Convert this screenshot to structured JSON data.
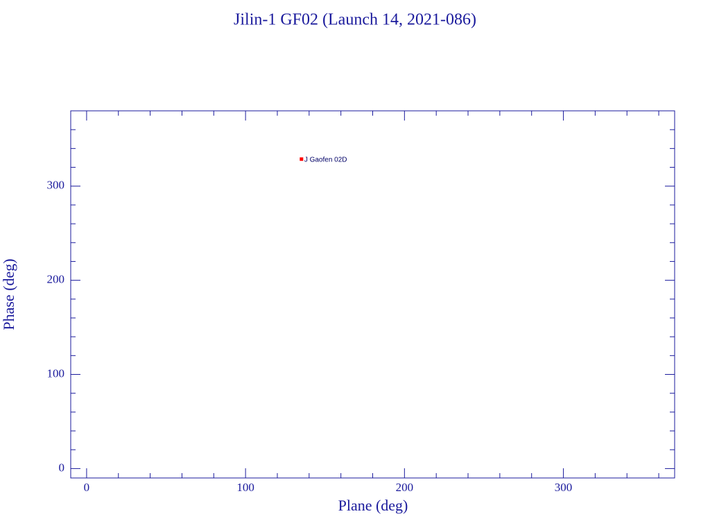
{
  "chart_data": {
    "type": "scatter",
    "title": "Jilin-1 GF02 (Launch 14, 2021-086)",
    "xlabel": "Plane (deg)",
    "ylabel": "Phase (deg)",
    "xlim": [
      -10,
      370
    ],
    "ylim": [
      -10,
      380
    ],
    "xticks": [
      0,
      100,
      200,
      300
    ],
    "yticks": [
      0,
      100,
      200,
      300
    ],
    "x_minor_ticks": [
      20,
      40,
      60,
      80,
      120,
      140,
      160,
      180,
      220,
      240,
      260,
      280,
      320,
      340,
      360
    ],
    "y_minor_ticks": [
      20,
      40,
      60,
      80,
      120,
      140,
      160,
      180,
      220,
      240,
      260,
      280,
      320,
      340,
      360
    ],
    "series": [
      {
        "name": "J Gaofen 02D",
        "color": "#ff0000",
        "x": [
          135.2
        ],
        "values": [
          328.7
        ]
      }
    ]
  }
}
